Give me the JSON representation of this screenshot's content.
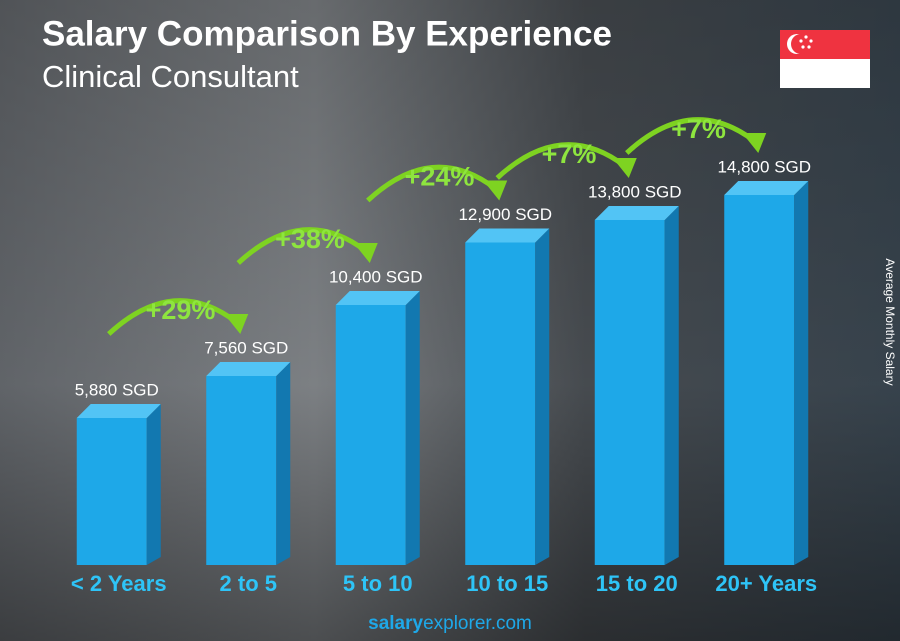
{
  "chart_data": {
    "type": "bar",
    "title": "Salary Comparison By Experience",
    "subtitle": "Clinical Consultant",
    "y_axis_label": "Average Monthly Salary",
    "categories": [
      "< 2 Years",
      "2 to 5",
      "5 to 10",
      "10 to 15",
      "15 to 20",
      "20+ Years"
    ],
    "values": [
      5880,
      7560,
      10400,
      12900,
      13800,
      14800
    ],
    "value_labels": [
      "5,880 SGD",
      "7,560 SGD",
      "10,400 SGD",
      "12,900 SGD",
      "13,800 SGD",
      "14,800 SGD"
    ],
    "annotations": [
      "+29%",
      "+38%",
      "+24%",
      "+7%",
      "+7%"
    ],
    "color": "#1ea8e8",
    "footer": [
      "salary",
      "explorer",
      ".com"
    ]
  }
}
